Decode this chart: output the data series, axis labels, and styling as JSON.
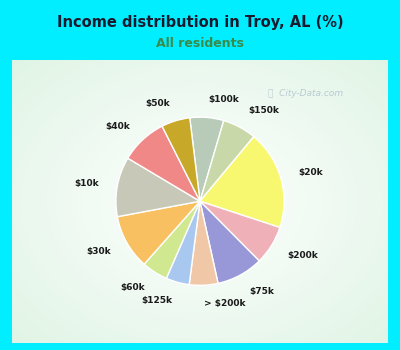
{
  "title": "Income distribution in Troy, AL (%)",
  "subtitle": "All residents",
  "title_color": "#1a1a2e",
  "subtitle_color": "#3a8a4a",
  "background_outer": "#00eeff",
  "labels": [
    "$100k",
    "$150k",
    "$20k",
    "$200k",
    "$75k",
    "> $200k",
    "$125k",
    "$60k",
    "$30k",
    "$10k",
    "$40k",
    "$50k"
  ],
  "values": [
    6.5,
    6.5,
    19.0,
    7.5,
    9.0,
    5.5,
    4.5,
    5.0,
    10.5,
    11.5,
    9.0,
    5.5
  ],
  "colors": [
    "#b8cbb8",
    "#c8d8a8",
    "#f8f870",
    "#f0b0b8",
    "#9898d8",
    "#f0c8a8",
    "#a8c8f0",
    "#d0e890",
    "#f8c060",
    "#c8c8b8",
    "#f08888",
    "#c8a828"
  ],
  "wedge_edge_color": "#ffffff",
  "startangle": 97,
  "watermark": "City-Data.com"
}
